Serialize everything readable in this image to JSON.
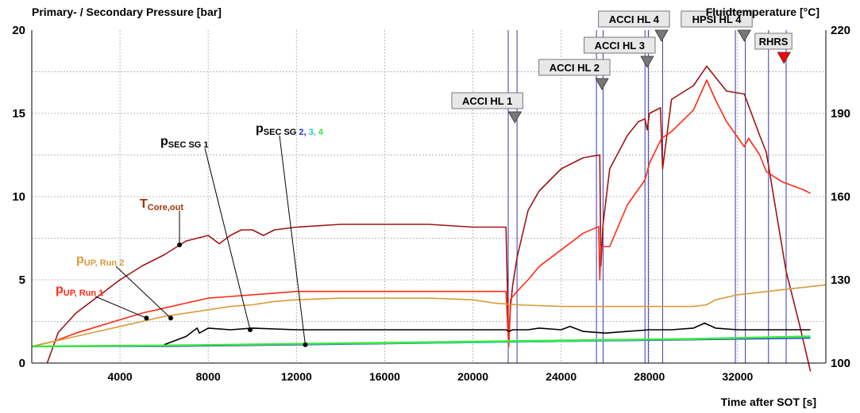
{
  "chart_data": {
    "type": "line",
    "ylabel_left": "Primary- / Secondary Pressure [bar]",
    "ylabel_right": "Fluidtemperature [°C]",
    "xlabel": "Time after SOT [s]",
    "xlim": [
      0,
      36000
    ],
    "ylim_left": [
      0,
      20
    ],
    "ylim_right": [
      100,
      220
    ],
    "x_ticks": [
      4000,
      8000,
      12000,
      16000,
      20000,
      24000,
      28000,
      32000
    ],
    "y_left_ticks": [
      0,
      5,
      10,
      15,
      20
    ],
    "y_right_ticks": [
      100,
      130,
      160,
      190,
      220
    ],
    "grid": true,
    "events": [
      {
        "label": "ACCI HL 1",
        "x": 21900,
        "color": "#777777"
      },
      {
        "label": "ACCI HL 2",
        "x": 25850,
        "color": "#777777"
      },
      {
        "label": "ACCI HL 3",
        "x": 27900,
        "color": "#777777"
      },
      {
        "label": "ACCI HL 4",
        "x": 28550,
        "color": "#777777"
      },
      {
        "label": "HPSI HL 4",
        "x": 32300,
        "color": "#777777"
      },
      {
        "label": "RHRS",
        "x": 34100,
        "color": "#ff0000"
      }
    ],
    "vlines_x": [
      21600,
      22000,
      25600,
      25900,
      27800,
      27950,
      28600,
      31900,
      32350,
      33400,
      34200
    ],
    "series": [
      {
        "name": "T_Core,out",
        "axis": "right",
        "color": "#a01414",
        "x": [
          700,
          1200,
          2000,
          3000,
          4000,
          5000,
          6000,
          7000,
          8000,
          8500,
          9000,
          9500,
          10000,
          10500,
          11000,
          12000,
          14000,
          16000,
          18000,
          20000,
          21500,
          21620,
          21700,
          21800,
          22000,
          22500,
          23000,
          24000,
          25000,
          25750,
          25800,
          25900,
          26200,
          27000,
          27500,
          27800,
          27900,
          28000,
          28500,
          28600,
          29000,
          30000,
          30600,
          31500,
          32300,
          33000,
          33300,
          33800,
          34200,
          34800,
          35300
        ],
        "y": [
          100,
          111,
          118,
          124,
          130,
          135,
          139,
          144,
          146,
          143,
          146,
          148,
          148,
          146,
          148,
          149,
          150,
          150,
          150,
          149,
          149,
          106,
          120,
          128,
          138,
          155,
          162,
          170,
          174,
          175,
          135,
          150,
          170,
          182,
          187,
          188,
          184,
          190,
          192,
          170,
          195,
          200,
          207,
          198,
          197,
          182,
          176,
          152,
          133,
          114,
          97
        ]
      },
      {
        "name": "p_UP, Run 1",
        "axis": "left",
        "color": "#ff2a14",
        "x": [
          0,
          1000,
          2000,
          3000,
          4000,
          5000,
          6000,
          7000,
          8000,
          9000,
          10000,
          11000,
          12000,
          14000,
          16000,
          18000,
          20000,
          21500,
          21620,
          21700,
          21800,
          22000,
          22500,
          23000,
          24000,
          25000,
          25700,
          25750,
          25800,
          26200,
          27000,
          27800,
          27900,
          28000,
          28550,
          29000,
          30000,
          30600,
          31000,
          31500,
          32300,
          32500,
          33000,
          33300,
          34000,
          35000,
          35300
        ],
        "y": [
          1.0,
          1.3,
          1.8,
          2.2,
          2.6,
          3.0,
          3.3,
          3.6,
          3.9,
          4.0,
          4.1,
          4.2,
          4.3,
          4.3,
          4.3,
          4.3,
          4.3,
          4.3,
          1.0,
          3.8,
          4.0,
          4.3,
          5.0,
          5.8,
          6.8,
          7.8,
          8.2,
          5.0,
          7.0,
          7.0,
          9.5,
          11.0,
          11.5,
          12.0,
          13.5,
          13.9,
          15.2,
          17.0,
          15.8,
          14.5,
          13.0,
          13.5,
          12.5,
          11.5,
          10.9,
          10.4,
          10.2
        ]
      },
      {
        "name": "p_UP, Run 2",
        "axis": "left",
        "color": "#d99a3a",
        "x": [
          0,
          1000,
          2000,
          3000,
          4000,
          5000,
          6000,
          7000,
          8000,
          9000,
          10000,
          11000,
          12000,
          14000,
          16000,
          18000,
          20000,
          21000,
          22000,
          24000,
          26000,
          28000,
          30000,
          30600,
          31000,
          32000,
          34000,
          36000
        ],
        "y": [
          1.0,
          1.3,
          1.6,
          1.9,
          2.2,
          2.5,
          2.8,
          3.0,
          3.2,
          3.4,
          3.5,
          3.7,
          3.8,
          3.9,
          3.9,
          3.9,
          3.8,
          3.6,
          3.5,
          3.4,
          3.4,
          3.4,
          3.4,
          3.5,
          3.8,
          4.1,
          4.4,
          4.7
        ]
      },
      {
        "name": "p_SEC SG 1",
        "axis": "left",
        "color": "#000000",
        "x": [
          6000,
          7000,
          7500,
          7600,
          8000,
          9000,
          10000,
          12000,
          16000,
          20000,
          21500,
          21620,
          21800,
          22500,
          23000,
          24000,
          24400,
          25000,
          26000,
          27000,
          28000,
          29000,
          30000,
          30500,
          31000,
          32000,
          34000,
          35300
        ],
        "y": [
          1.1,
          1.6,
          2.1,
          1.8,
          2.1,
          2.0,
          2.1,
          2.0,
          2.0,
          2.0,
          2.0,
          1.9,
          2.0,
          2.0,
          2.1,
          2.0,
          2.2,
          1.9,
          1.8,
          1.9,
          2.0,
          2.0,
          2.1,
          2.4,
          2.1,
          2.0,
          2.0,
          2.0
        ]
      },
      {
        "name": "p_SEC SG 2",
        "axis": "left",
        "color": "#2b2bd9",
        "x": [
          0,
          6000,
          12000,
          18000,
          24000,
          30000,
          35300
        ],
        "y": [
          1.0,
          1.0,
          1.1,
          1.2,
          1.3,
          1.4,
          1.5
        ]
      },
      {
        "name": "p_SEC SG 3",
        "axis": "left",
        "color": "#22c8c8",
        "x": [
          0,
          6000,
          12000,
          18000,
          24000,
          30000,
          35300
        ],
        "y": [
          1.0,
          1.05,
          1.15,
          1.2,
          1.3,
          1.45,
          1.55
        ]
      },
      {
        "name": "p_SEC SG 4",
        "axis": "left",
        "color": "#39e83e",
        "x": [
          0,
          6000,
          12000,
          18000,
          24000,
          30000,
          35300
        ],
        "y": [
          1.0,
          1.05,
          1.15,
          1.25,
          1.35,
          1.45,
          1.6
        ]
      }
    ],
    "annotations": [
      {
        "main": "T",
        "sub": "Core,out",
        "color": "#a0330a",
        "target_x": 6700,
        "target_y": 7.1
      },
      {
        "main": "p",
        "sub": "UP, Run 2",
        "color": "#d99a3a",
        "target_x": 6300,
        "target_y": 2.7
      },
      {
        "main": "p",
        "sub": "UP, Run 1",
        "color": "#ff2a14",
        "target_x": 5200,
        "target_y": 2.7
      },
      {
        "main": "p",
        "sub": "SEC SG 1",
        "color": "#000000",
        "target_x": 9900,
        "target_y": 2.0
      },
      {
        "main": "p",
        "sub": "SEC SG",
        "sub_parts": [
          {
            "text": "2",
            "color": "#2b2bd9"
          },
          {
            "text": "3",
            "color": "#22c8c8"
          },
          {
            "text": "4",
            "color": "#39e83e"
          }
        ],
        "color": "#000000",
        "target_x": 12400,
        "target_y": 1.1
      }
    ]
  }
}
